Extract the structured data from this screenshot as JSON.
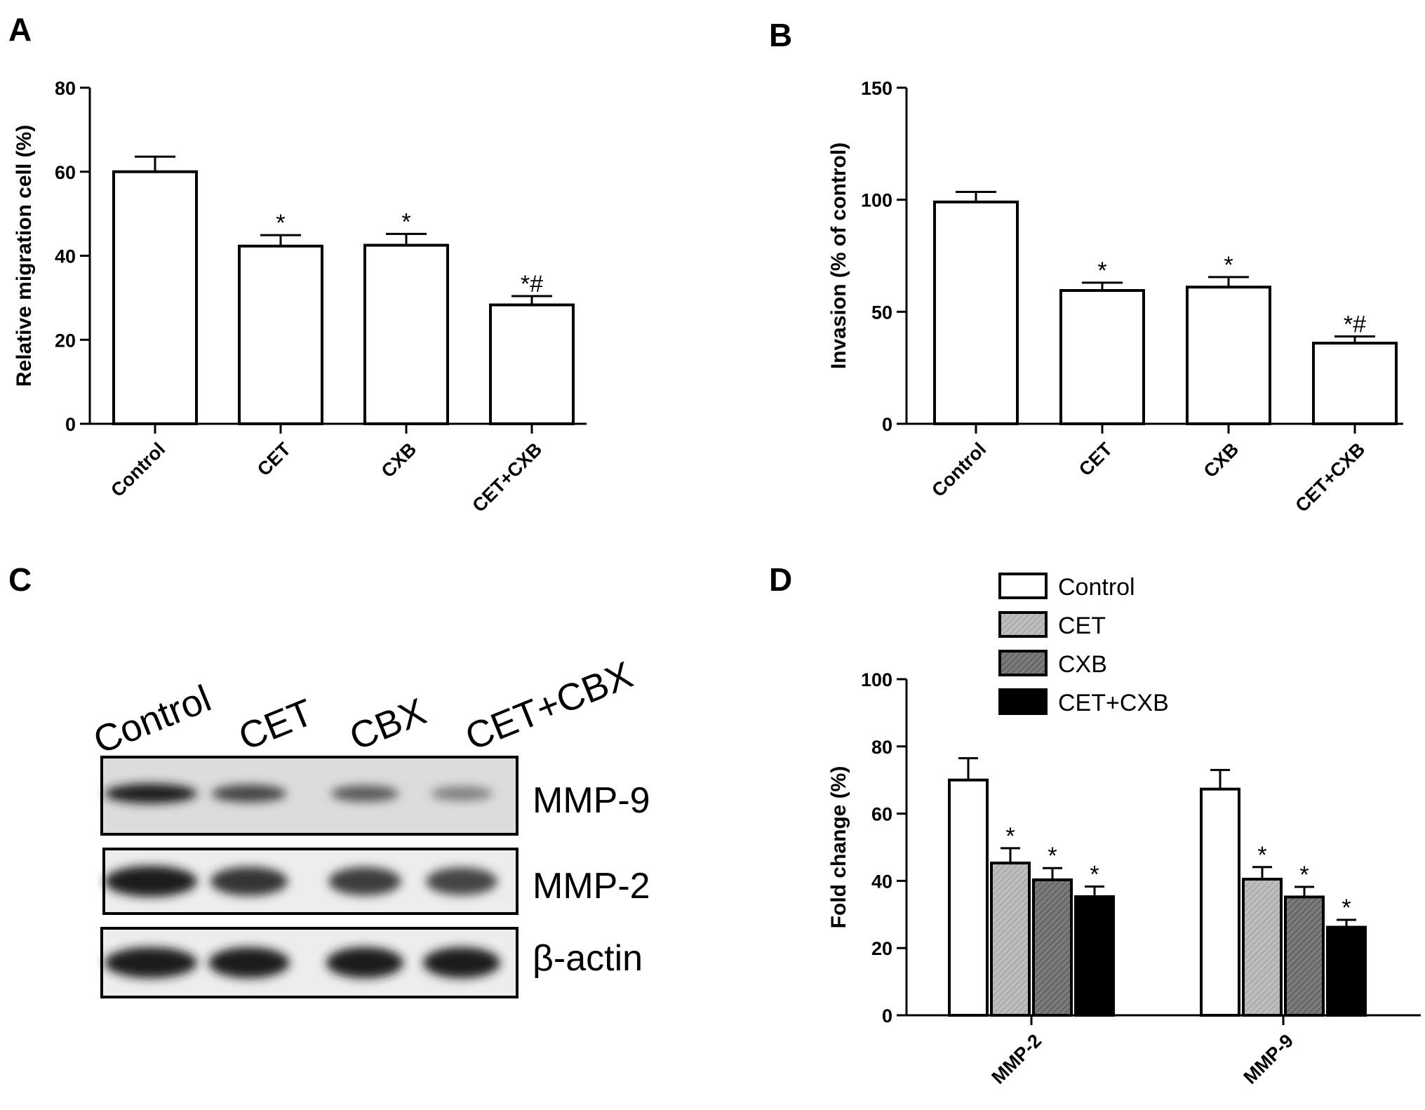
{
  "panels": {
    "a": "A",
    "b": "B",
    "c": "C",
    "d": "D"
  },
  "chart_data": [
    {
      "panel": "A",
      "type": "bar",
      "categories": [
        "Control",
        "CET",
        "CXB",
        "CET+CXB"
      ],
      "values": [
        60,
        42.3,
        42.5,
        28.3
      ],
      "errors": [
        3.6,
        2.6,
        2.7,
        2.1
      ],
      "annotations": [
        "",
        "*",
        "*",
        "*#"
      ],
      "ylabel": "Relative migration cell (%)",
      "ylim": [
        0,
        80
      ],
      "yticks": [
        0,
        20,
        40,
        60,
        80
      ],
      "bar_color": "#ffffff"
    },
    {
      "panel": "B",
      "type": "bar",
      "categories": [
        "Control",
        "CET",
        "CXB",
        "CET+CXB"
      ],
      "values": [
        99,
        59.5,
        61,
        36
      ],
      "errors": [
        4.5,
        3.5,
        4.5,
        3
      ],
      "annotations": [
        "",
        "*",
        "*",
        "*#"
      ],
      "ylabel": "Invasion (% of control)",
      "ylim": [
        0,
        150
      ],
      "yticks": [
        0,
        50,
        100,
        150
      ],
      "bar_color": "#ffffff"
    },
    {
      "panel": "D",
      "type": "bar",
      "categories": [
        "MMP-2",
        "MMP-9"
      ],
      "series": [
        {
          "name": "Control",
          "values": [
            70,
            67.3
          ],
          "errors": [
            6.5,
            5.7
          ],
          "annotations": [
            "",
            ""
          ],
          "color": "#ffffff"
        },
        {
          "name": "CET",
          "values": [
            45.3,
            40.5
          ],
          "errors": [
            4.4,
            3.6
          ],
          "annotations": [
            "*",
            "*"
          ],
          "color": "#b4b4b4"
        },
        {
          "name": "CXB",
          "values": [
            40.3,
            35.2
          ],
          "errors": [
            3.5,
            3
          ],
          "annotations": [
            "*",
            "*"
          ],
          "color": "#6e6e6e"
        },
        {
          "name": "CET+CXB",
          "values": [
            35.3,
            26.2
          ],
          "errors": [
            3,
            2.2
          ],
          "annotations": [
            "*",
            "*"
          ],
          "color": "#000000"
        }
      ],
      "ylabel": "Fold change (%)",
      "ylim": [
        0,
        100
      ],
      "yticks": [
        0,
        20,
        40,
        60,
        80,
        100
      ],
      "legend_position": "top"
    }
  ],
  "blot": {
    "lanes": [
      "Control",
      "CET",
      "CBX",
      "CET+CBX"
    ],
    "rows": [
      {
        "label": "MMP-9",
        "intensities": [
          1.0,
          0.75,
          0.6,
          0.35
        ]
      },
      {
        "label": "MMP-2",
        "intensities": [
          1.0,
          0.85,
          0.8,
          0.75
        ]
      },
      {
        "label": "β-actin",
        "intensities": [
          1.0,
          1.0,
          1.0,
          1.0
        ]
      }
    ]
  }
}
